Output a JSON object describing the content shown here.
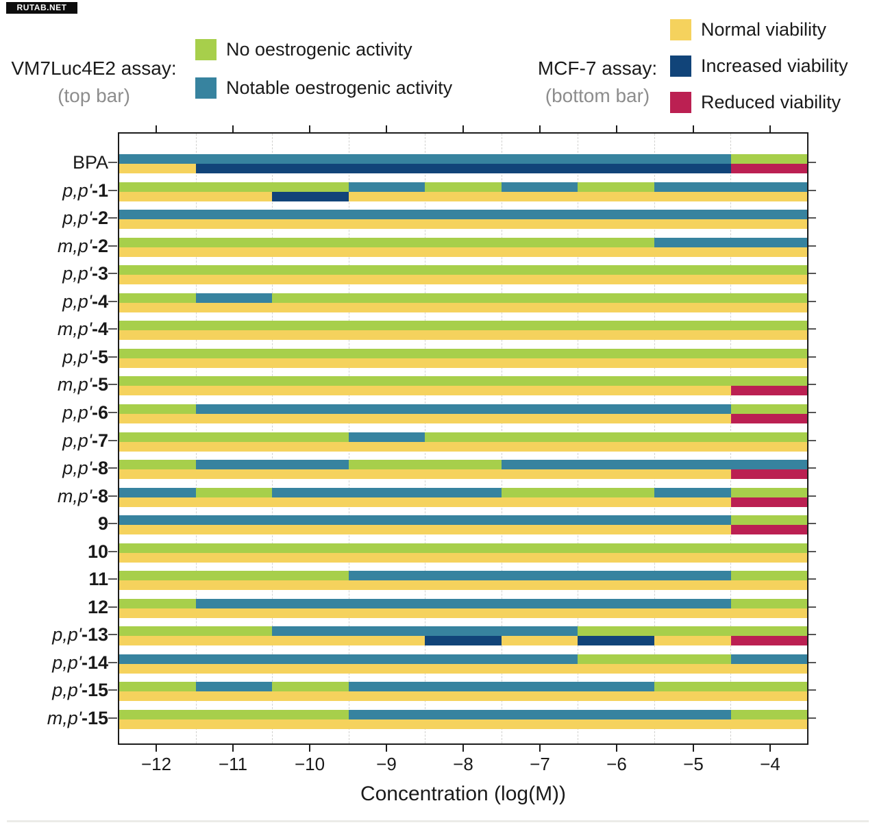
{
  "watermark": "RUTAB.NET",
  "legend_left": {
    "title": "VM7Luc4E2 assay:",
    "subtitle": "(top bar)",
    "items": [
      {
        "name": "no-oestrogenic-activity",
        "label": "No oestrogenic activity",
        "color": "#a7cf4b"
      },
      {
        "name": "notable-oestrogenic-activity",
        "label": "Notable oestrogenic activity",
        "color": "#37839f"
      }
    ]
  },
  "legend_right": {
    "title": "MCF-7 assay:",
    "subtitle": "(bottom bar)",
    "items": [
      {
        "name": "normal-viability",
        "label": "Normal viability",
        "color": "#f5d25d"
      },
      {
        "name": "increased-viability",
        "label": "Increased viability",
        "color": "#114479"
      },
      {
        "name": "reduced-viability",
        "label": "Reduced viability",
        "color": "#bb2052"
      }
    ]
  },
  "chart_data": {
    "type": "heatmap",
    "title": "",
    "xlabel": "Concentration (log(M))",
    "x_range": [
      -12.5,
      -3.5
    ],
    "x_ticks": [
      -12,
      -11,
      -10,
      -9,
      -8,
      -7,
      -6,
      -5,
      -4
    ],
    "x_tick_labels": [
      "−12",
      "−11",
      "−10",
      "−9",
      "−8",
      "−7",
      "−6",
      "−5",
      "−4"
    ],
    "grid_positions": [
      -11.5,
      -10.5,
      -9.5,
      -8.5,
      -7.5,
      -6.5,
      -5.5,
      -4.5
    ],
    "grid_style": "dashed",
    "top_bar_assay": "VM7Luc4E2",
    "bottom_bar_assay": "MCF-7",
    "cell_width_log_units": 1,
    "cell_codes": {
      "N": "no-oestrogenic-activity",
      "A": "notable-oestrogenic-activity",
      "V": "normal-viability",
      "I": "increased-viability",
      "R": "reduced-viability"
    },
    "palette": {
      "no-oestrogenic-activity": "#a7cf4b",
      "notable-oestrogenic-activity": "#37839f",
      "normal-viability": "#f5d25d",
      "increased-viability": "#114479",
      "reduced-viability": "#bb2052"
    },
    "rows": [
      {
        "label_plain": "BPA",
        "label_italic": "",
        "label_bold": "",
        "top": "AAAAAAAAN",
        "bottom": "VIIIIIIIR"
      },
      {
        "label_plain": "",
        "label_italic": "p,p'",
        "label_bold": "-1",
        "top": "NNNANANAA",
        "bottom": "VVIVVVVVV"
      },
      {
        "label_plain": "",
        "label_italic": "p,p'",
        "label_bold": "-2",
        "top": "AAAAAAAAA",
        "bottom": "VVVVVVVVV"
      },
      {
        "label_plain": "",
        "label_italic": "m,p'",
        "label_bold": "-2",
        "top": "NNNNNNNAA",
        "bottom": "VVVVVVVVV"
      },
      {
        "label_plain": "",
        "label_italic": "p,p'",
        "label_bold": "-3",
        "top": "NNNNNNNNN",
        "bottom": "VVVVVVVVV"
      },
      {
        "label_plain": "",
        "label_italic": "p,p'",
        "label_bold": "-4",
        "top": "NANNNNNNN",
        "bottom": "VVVVVVVVV"
      },
      {
        "label_plain": "",
        "label_italic": "m,p'",
        "label_bold": "-4",
        "top": "NNNNNNNNN",
        "bottom": "VVVVVVVVV"
      },
      {
        "label_plain": "",
        "label_italic": "p,p'",
        "label_bold": "-5",
        "top": "NNNNNNNNN",
        "bottom": "VVVVVVVVV"
      },
      {
        "label_plain": "",
        "label_italic": "m,p'",
        "label_bold": "-5",
        "top": "NNNNNNNNN",
        "bottom": "VVVVVVVVR"
      },
      {
        "label_plain": "",
        "label_italic": "p,p'",
        "label_bold": "-6",
        "top": "NAAAAAAAN",
        "bottom": "VVVVVVVVR"
      },
      {
        "label_plain": "",
        "label_italic": "p,p'",
        "label_bold": "-7",
        "top": "NNNANNNNN",
        "bottom": "VVVVVVVVV"
      },
      {
        "label_plain": "",
        "label_italic": "p,p'",
        "label_bold": "-8",
        "top": "NAANNAAAA",
        "bottom": "VVVVVVVVR"
      },
      {
        "label_plain": "",
        "label_italic": "m,p'",
        "label_bold": "-8",
        "top": "ANAAANNAN",
        "bottom": "VVVVVVVVR"
      },
      {
        "label_plain": "",
        "label_italic": "",
        "label_bold": "9",
        "top": "AAAAAAAAN",
        "bottom": "VVVVVVVVR"
      },
      {
        "label_plain": "",
        "label_italic": "",
        "label_bold": "10",
        "top": "NNNNNNNNN",
        "bottom": "VVVVVVVVV"
      },
      {
        "label_plain": "",
        "label_italic": "",
        "label_bold": "11",
        "top": "NNNAAAAAN",
        "bottom": "VVVVVVVVV"
      },
      {
        "label_plain": "",
        "label_italic": "",
        "label_bold": "12",
        "top": "NAAAAAAAN",
        "bottom": "VVVVVVVVV"
      },
      {
        "label_plain": "",
        "label_italic": "p,p'",
        "label_bold": "-13",
        "top": "NNAAAANNN",
        "bottom": "VVVVIVIVR"
      },
      {
        "label_plain": "",
        "label_italic": "p,p'",
        "label_bold": "-14",
        "top": "AAAAAANNA",
        "bottom": "VVVVVVVVV"
      },
      {
        "label_plain": "",
        "label_italic": "p,p'",
        "label_bold": "-15",
        "top": "NANAAAANN",
        "bottom": "VVVVVVVVV"
      },
      {
        "label_plain": "",
        "label_italic": "m,p'",
        "label_bold": "-15",
        "top": "NNNAAAAAN",
        "bottom": "VVVVVVVVV"
      }
    ]
  }
}
